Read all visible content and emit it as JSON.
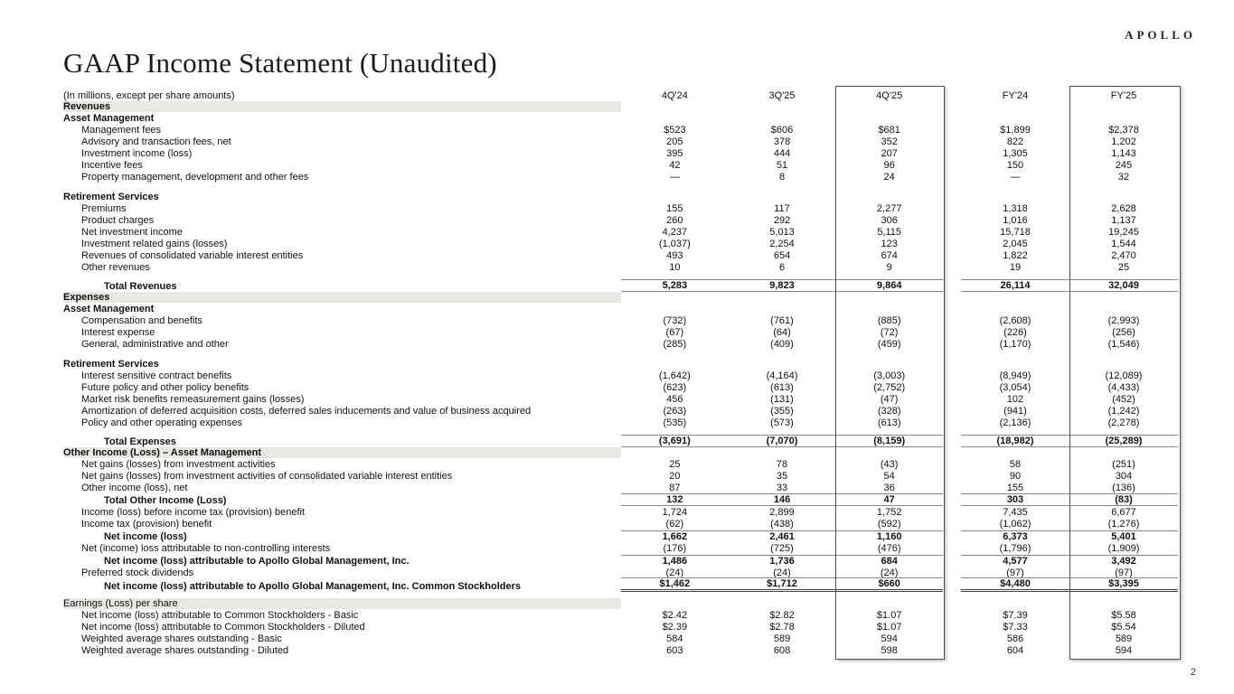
{
  "logo": "APOLLO",
  "page_number": "2",
  "title": "GAAP Income Statement (Unaudited)",
  "subtitle": "(In millions, except per share amounts)",
  "style": {
    "band_color": "#e8e8e4",
    "rule_color": "#8a8a8a",
    "box_border_color": "#4d4d4d"
  },
  "table": {
    "columns": [
      "4Q'24",
      "3Q'25",
      "4Q'25",
      "FY'24",
      "FY'25"
    ],
    "highlighted_columns": [
      "4Q'25",
      "FY'25"
    ],
    "rows": [
      {
        "type": "section",
        "label": "Revenues"
      },
      {
        "type": "group",
        "label": "Asset Management"
      },
      {
        "type": "item",
        "label": "Management fees",
        "values": [
          "$523",
          "$606",
          "$681",
          "$1,899",
          "$2,378"
        ]
      },
      {
        "type": "item",
        "label": "Advisory and transaction fees, net",
        "values": [
          "205",
          "378",
          "352",
          "822",
          "1,202"
        ]
      },
      {
        "type": "item",
        "label": "Investment income (loss)",
        "values": [
          "395",
          "444",
          "207",
          "1,305",
          "1,143"
        ]
      },
      {
        "type": "item",
        "label": "Incentive fees",
        "values": [
          "42",
          "51",
          "96",
          "150",
          "245"
        ]
      },
      {
        "type": "item",
        "label": "Property management, development and other fees",
        "values": [
          "—",
          "8",
          "24",
          "—",
          "32"
        ]
      },
      {
        "type": "spacer",
        "h": 9
      },
      {
        "type": "group",
        "label": "Retirement Services"
      },
      {
        "type": "item",
        "label": "Premiums",
        "values": [
          "155",
          "117",
          "2,277",
          "1,318",
          "2,628"
        ]
      },
      {
        "type": "item",
        "label": "Product charges",
        "values": [
          "260",
          "292",
          "306",
          "1,016",
          "1,137"
        ]
      },
      {
        "type": "item",
        "label": "Net investment income",
        "values": [
          "4,237",
          "5,013",
          "5,115",
          "15,718",
          "19,245"
        ]
      },
      {
        "type": "item",
        "label": "Investment related gains (losses)",
        "values": [
          "(1,037)",
          "2,254",
          "123",
          "2,045",
          "1,544"
        ]
      },
      {
        "type": "item",
        "label": "Revenues of consolidated variable interest entities",
        "values": [
          "493",
          "654",
          "674",
          "1,822",
          "2,470"
        ]
      },
      {
        "type": "item",
        "label": "Other revenues",
        "values": [
          "10",
          "6",
          "9",
          "19",
          "25"
        ]
      },
      {
        "type": "spacer",
        "h": 7
      },
      {
        "type": "total",
        "label": "Total Revenues",
        "values": [
          "5,283",
          "9,823",
          "9,864",
          "26,114",
          "32,049"
        ],
        "rule": "both"
      },
      {
        "type": "section",
        "label": "Expenses"
      },
      {
        "type": "group",
        "label": "Asset Management"
      },
      {
        "type": "item",
        "label": "Compensation and benefits",
        "values": [
          "(732)",
          "(761)",
          "(885)",
          "(2,608)",
          "(2,993)"
        ]
      },
      {
        "type": "item",
        "label": "Interest expense",
        "values": [
          "(67)",
          "(64)",
          "(72)",
          "(226)",
          "(256)"
        ]
      },
      {
        "type": "item",
        "label": "General, administrative and other",
        "values": [
          "(285)",
          "(409)",
          "(459)",
          "(1,170)",
          "(1,546)"
        ]
      },
      {
        "type": "spacer",
        "h": 9
      },
      {
        "type": "group",
        "label": "Retirement Services"
      },
      {
        "type": "item",
        "label": "Interest sensitive contract benefits",
        "values": [
          "(1,642)",
          "(4,164)",
          "(3,003)",
          "(8,949)",
          "(12,089)"
        ]
      },
      {
        "type": "item",
        "label": "Future policy and other policy benefits",
        "values": [
          "(623)",
          "(613)",
          "(2,752)",
          "(3,054)",
          "(4,433)"
        ]
      },
      {
        "type": "item",
        "label": "Market risk benefits remeasurement gains (losses)",
        "values": [
          "456",
          "(131)",
          "(47)",
          "102",
          "(452)"
        ]
      },
      {
        "type": "item",
        "label": "Amortization of deferred acquisition costs, deferred sales inducements and value of business acquired",
        "values": [
          "(263)",
          "(355)",
          "(328)",
          "(941)",
          "(1,242)"
        ]
      },
      {
        "type": "item",
        "label": "Policy and other operating expenses",
        "values": [
          "(535)",
          "(573)",
          "(613)",
          "(2,136)",
          "(2,278)"
        ]
      },
      {
        "type": "spacer",
        "h": 7
      },
      {
        "type": "total",
        "label": "Total Expenses",
        "values": [
          "(3,691)",
          "(7,070)",
          "(8,159)",
          "(18,982)",
          "(25,289)"
        ],
        "rule": "both"
      },
      {
        "type": "section",
        "label": "Other Income (Loss) – Asset Management"
      },
      {
        "type": "item",
        "label": "Net gains (losses) from investment activities",
        "values": [
          "25",
          "78",
          "(43)",
          "58",
          "(251)"
        ]
      },
      {
        "type": "item",
        "label": "Net gains (losses) from investment activities of consolidated variable interest entities",
        "values": [
          "20",
          "35",
          "54",
          "90",
          "304"
        ]
      },
      {
        "type": "item",
        "label": "Other income (loss), net",
        "values": [
          "87",
          "33",
          "36",
          "155",
          "(136)"
        ]
      },
      {
        "type": "total",
        "label": "Total Other Income (Loss)",
        "values": [
          "132",
          "146",
          "47",
          "303",
          "(83)"
        ],
        "rule": "both"
      },
      {
        "type": "item",
        "label": "Income (loss) before income tax (provision) benefit",
        "values": [
          "1,724",
          "2,899",
          "1,752",
          "7,435",
          "6,677"
        ]
      },
      {
        "type": "item",
        "label": "Income tax (provision) benefit",
        "values": [
          "(62)",
          "(438)",
          "(592)",
          "(1,062)",
          "(1,276)"
        ]
      },
      {
        "type": "total",
        "label": "Net income (loss)",
        "values": [
          "1,662",
          "2,461",
          "1,160",
          "6,373",
          "5,401"
        ],
        "rule": "top"
      },
      {
        "type": "item",
        "label": "Net (income) loss attributable to non-controlling interests",
        "values": [
          "(176)",
          "(725)",
          "(476)",
          "(1,796)",
          "(1,909)"
        ]
      },
      {
        "type": "total",
        "label": "Net income (loss) attributable to Apollo Global Management, Inc.",
        "values": [
          "1,486",
          "1,736",
          "684",
          "4,577",
          "3,492"
        ],
        "rule": "top"
      },
      {
        "type": "item",
        "label": "Preferred stock dividends",
        "values": [
          "(24)",
          "(24)",
          "(24)",
          "(97)",
          "(97)"
        ]
      },
      {
        "type": "total2",
        "label": "Net income (loss) attributable to Apollo Global Management, Inc. Common Stockholders",
        "values": [
          "$1,462",
          "$1,712",
          "$660",
          "$4,480",
          "$3,395"
        ],
        "rule": "top-double"
      },
      {
        "type": "spacer",
        "h": 7
      },
      {
        "type": "section_plain",
        "label": "Earnings (Loss) per share"
      },
      {
        "type": "item",
        "label": "Net income (loss) attributable to Common Stockholders - Basic",
        "values": [
          "$2.42",
          "$2.82",
          "$1.07",
          "$7.39",
          "$5.58"
        ]
      },
      {
        "type": "item",
        "label": "Net income (loss) attributable to Common Stockholders - Diluted",
        "values": [
          "$2.39",
          "$2.78",
          "$1.07",
          "$7.33",
          "$5.54"
        ]
      },
      {
        "type": "item",
        "label": "Weighted average shares outstanding - Basic",
        "values": [
          "584",
          "589",
          "594",
          "586",
          "589"
        ]
      },
      {
        "type": "item",
        "label": "Weighted average shares outstanding - Diluted",
        "values": [
          "603",
          "608",
          "598",
          "604",
          "594"
        ]
      }
    ]
  }
}
